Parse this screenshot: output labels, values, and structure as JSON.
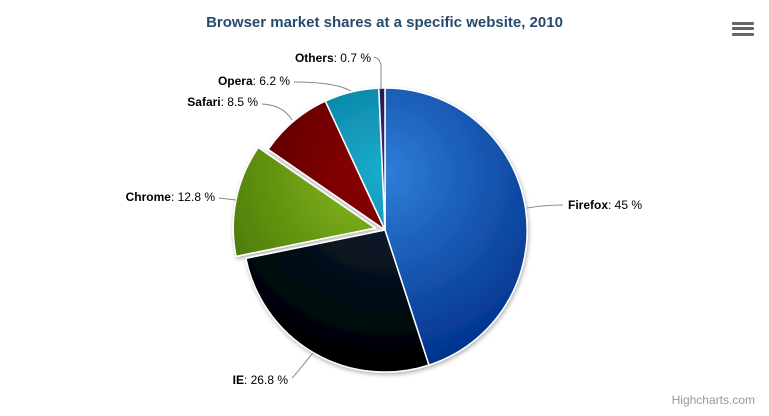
{
  "chart": {
    "title": "Browser market shares at a specific website, 2010",
    "title_color": "#274b6d",
    "credits_label": "Highcharts.com",
    "credits_color": "#999999",
    "export_menu_icon": "hamburger-icon",
    "background_color": "#ffffff"
  },
  "chart_data": {
    "type": "pie",
    "title": "Browser market shares at a specific website, 2010",
    "unit": "%",
    "start_angle_deg": 0,
    "direction": "clockwise",
    "label_separator": ": ",
    "connector_color": "#888888",
    "border_color": "#ffffff",
    "slices": [
      {
        "name": "Firefox",
        "value": 45,
        "display_value": "45 %",
        "color": "#2f7ed8",
        "sliced": false
      },
      {
        "name": "IE",
        "value": 26.8,
        "display_value": "26.8 %",
        "color": "#0d233a",
        "sliced": false
      },
      {
        "name": "Chrome",
        "value": 12.8,
        "display_value": "12.8 %",
        "color": "#8bbc21",
        "sliced": true
      },
      {
        "name": "Safari",
        "value": 8.5,
        "display_value": "8.5 %",
        "color": "#910000",
        "sliced": false
      },
      {
        "name": "Opera",
        "value": 6.2,
        "display_value": "6.2 %",
        "color": "#1aadce",
        "sliced": false
      },
      {
        "name": "Others",
        "value": 0.7,
        "display_value": "0.7 %",
        "color": "#492970",
        "sliced": false
      }
    ]
  }
}
